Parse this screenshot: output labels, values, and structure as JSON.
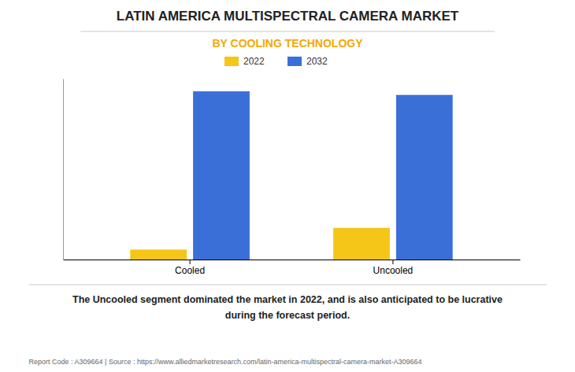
{
  "chart_data": {
    "type": "bar",
    "title": "LATIN AMERICA MULTISPECTRAL CAMERA MARKET",
    "subtitle": "BY COOLING TECHNOLOGY",
    "categories": [
      "Cooled",
      "Uncooled"
    ],
    "series": [
      {
        "name": "2022",
        "color": "#F5C518",
        "values": [
          0.055,
          0.175
        ]
      },
      {
        "name": "2032",
        "color": "#3A6FD8",
        "values": [
          0.93,
          0.91
        ]
      }
    ],
    "ylim": [
      0,
      1.0
    ],
    "grid": false,
    "legend": "top",
    "tick_labels": "x",
    "annotation": "The Uncooled segment dominated the market in 2022, and is also anticipated to be lucrative\nduring the forecast period.",
    "footer": "Report Code : A309664  |  Source : https://www.alliedmarketresearch.com/latin-america-multispectral-camera-market-A309664"
  }
}
